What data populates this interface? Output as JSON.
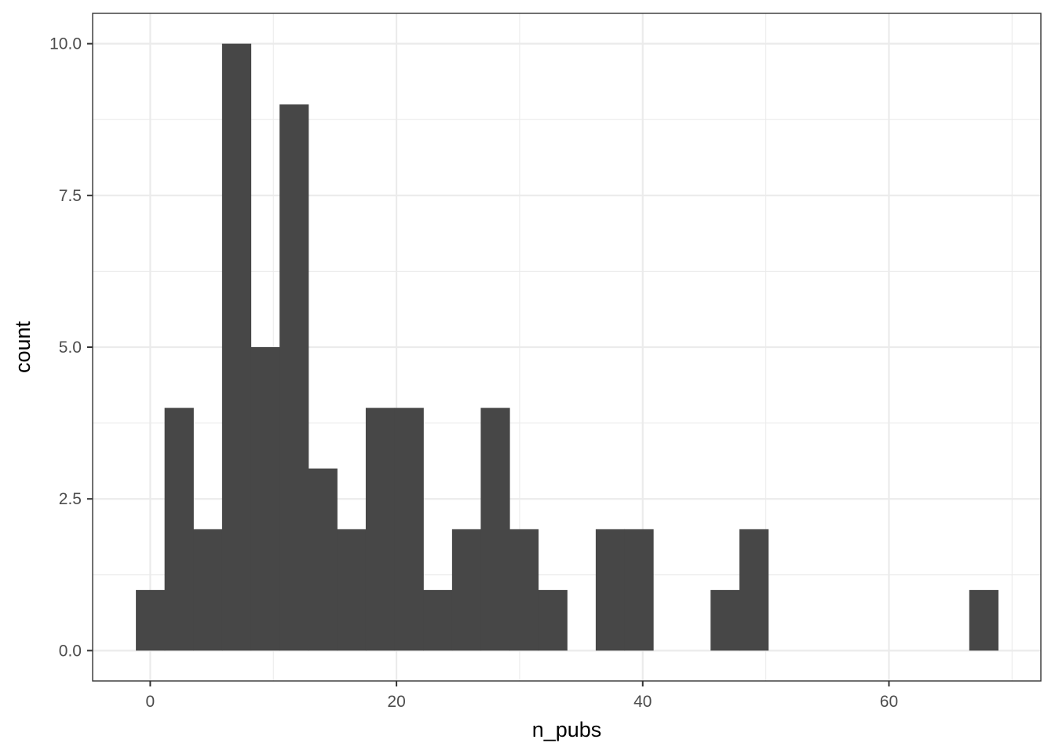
{
  "chart_data": {
    "type": "bar",
    "subtype": "histogram",
    "title": "",
    "xlabel": "n_pubs",
    "ylabel": "count",
    "xlim": [
      -4.68,
      72.34
    ],
    "ylim": [
      -0.5,
      10.5
    ],
    "bin_width": 2.3341,
    "x_ticks": [
      0,
      20,
      40,
      60
    ],
    "x_tick_labels": [
      "0",
      "20",
      "40",
      "60"
    ],
    "y_ticks": [
      0,
      2.5,
      5,
      7.5,
      10
    ],
    "y_tick_labels": [
      "0.0",
      "2.5",
      "5.0",
      "7.5",
      "10.0"
    ],
    "bins": [
      {
        "x": 0.0,
        "count": 1
      },
      {
        "x": 2.33,
        "count": 4
      },
      {
        "x": 4.67,
        "count": 2
      },
      {
        "x": 7.0,
        "count": 10
      },
      {
        "x": 9.34,
        "count": 5
      },
      {
        "x": 11.67,
        "count": 9
      },
      {
        "x": 14.0,
        "count": 3
      },
      {
        "x": 16.34,
        "count": 2
      },
      {
        "x": 18.67,
        "count": 4
      },
      {
        "x": 21.01,
        "count": 4
      },
      {
        "x": 23.34,
        "count": 1
      },
      {
        "x": 25.68,
        "count": 2
      },
      {
        "x": 28.01,
        "count": 4
      },
      {
        "x": 30.34,
        "count": 2
      },
      {
        "x": 32.68,
        "count": 1
      },
      {
        "x": 35.01,
        "count": 0
      },
      {
        "x": 37.35,
        "count": 2
      },
      {
        "x": 39.68,
        "count": 2
      },
      {
        "x": 42.01,
        "count": 0
      },
      {
        "x": 44.35,
        "count": 0
      },
      {
        "x": 46.68,
        "count": 1
      },
      {
        "x": 49.02,
        "count": 2
      },
      {
        "x": 51.35,
        "count": 0
      },
      {
        "x": 53.69,
        "count": 0
      },
      {
        "x": 56.02,
        "count": 0
      },
      {
        "x": 58.35,
        "count": 0
      },
      {
        "x": 60.69,
        "count": 0
      },
      {
        "x": 63.02,
        "count": 0
      },
      {
        "x": 65.36,
        "count": 0
      },
      {
        "x": 67.69,
        "count": 1
      }
    ],
    "grid": true,
    "legend": "none",
    "colors": {
      "bar": "#474747",
      "grid": "#ebebeb",
      "panel_border": "#333333",
      "background": "#ffffff"
    }
  }
}
